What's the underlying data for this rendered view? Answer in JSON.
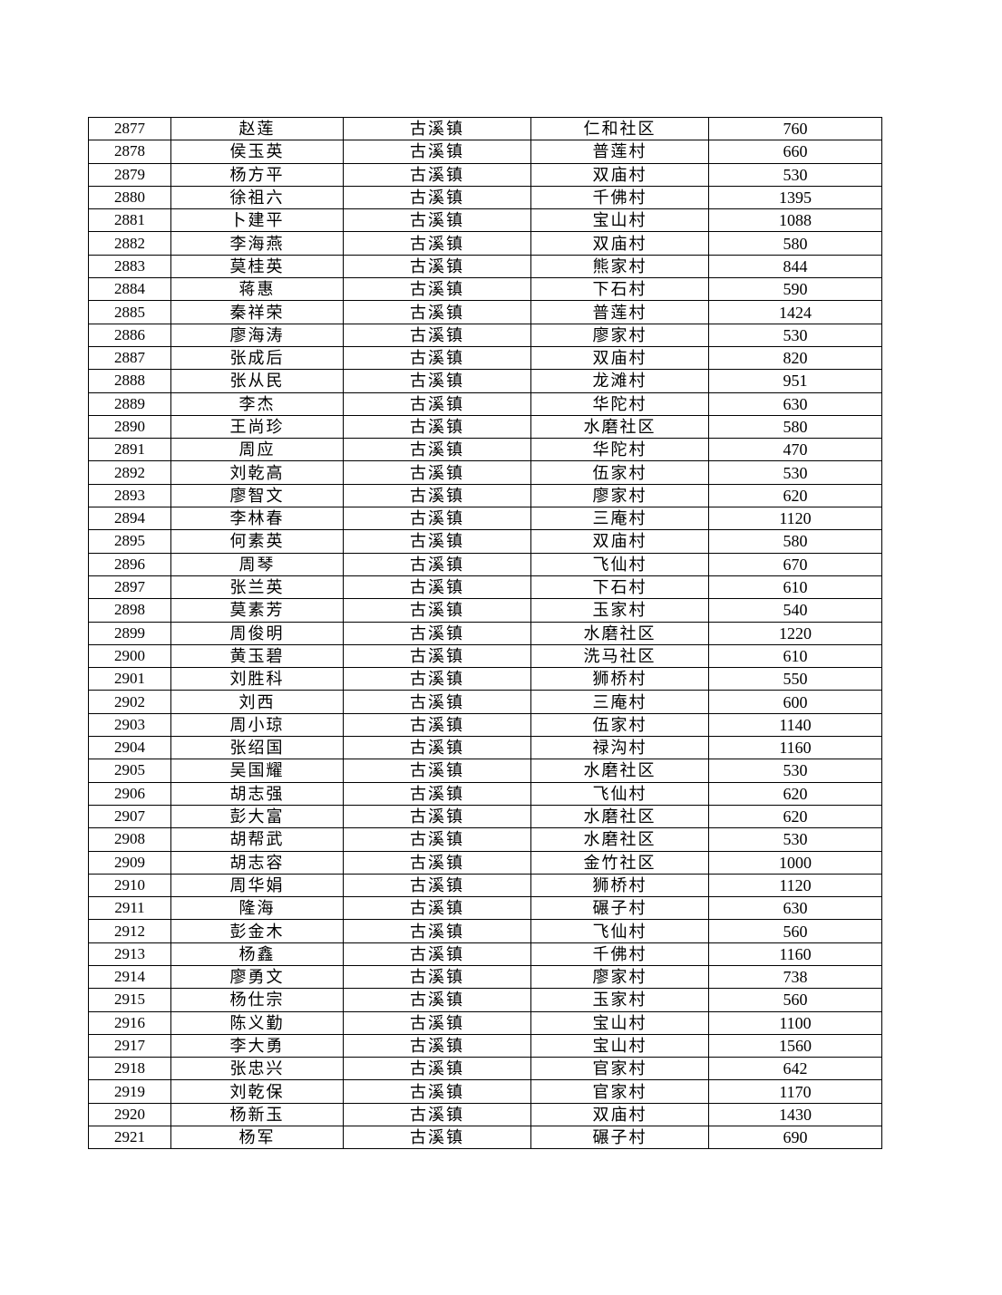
{
  "table": {
    "rows": [
      [
        "2877",
        "赵莲",
        "古溪镇",
        "仁和社区",
        "760"
      ],
      [
        "2878",
        "侯玉英",
        "古溪镇",
        "普莲村",
        "660"
      ],
      [
        "2879",
        "杨方平",
        "古溪镇",
        "双庙村",
        "530"
      ],
      [
        "2880",
        "徐祖六",
        "古溪镇",
        "千佛村",
        "1395"
      ],
      [
        "2881",
        "卜建平",
        "古溪镇",
        "宝山村",
        "1088"
      ],
      [
        "2882",
        "李海燕",
        "古溪镇",
        "双庙村",
        "580"
      ],
      [
        "2883",
        "莫桂英",
        "古溪镇",
        "熊家村",
        "844"
      ],
      [
        "2884",
        "蒋惠",
        "古溪镇",
        "下石村",
        "590"
      ],
      [
        "2885",
        "秦祥荣",
        "古溪镇",
        "普莲村",
        "1424"
      ],
      [
        "2886",
        "廖海涛",
        "古溪镇",
        "廖家村",
        "530"
      ],
      [
        "2887",
        "张成后",
        "古溪镇",
        "双庙村",
        "820"
      ],
      [
        "2888",
        "张从民",
        "古溪镇",
        "龙滩村",
        "951"
      ],
      [
        "2889",
        "李杰",
        "古溪镇",
        "华陀村",
        "630"
      ],
      [
        "2890",
        "王尚珍",
        "古溪镇",
        "水磨社区",
        "580"
      ],
      [
        "2891",
        "周应",
        "古溪镇",
        "华陀村",
        "470"
      ],
      [
        "2892",
        "刘乾高",
        "古溪镇",
        "伍家村",
        "530"
      ],
      [
        "2893",
        "廖智文",
        "古溪镇",
        "廖家村",
        "620"
      ],
      [
        "2894",
        "李林春",
        "古溪镇",
        "三庵村",
        "1120"
      ],
      [
        "2895",
        "何素英",
        "古溪镇",
        "双庙村",
        "580"
      ],
      [
        "2896",
        "周琴",
        "古溪镇",
        "飞仙村",
        "670"
      ],
      [
        "2897",
        "张兰英",
        "古溪镇",
        "下石村",
        "610"
      ],
      [
        "2898",
        "莫素芳",
        "古溪镇",
        "玉家村",
        "540"
      ],
      [
        "2899",
        "周俊明",
        "古溪镇",
        "水磨社区",
        "1220"
      ],
      [
        "2900",
        "黄玉碧",
        "古溪镇",
        "洗马社区",
        "610"
      ],
      [
        "2901",
        "刘胜科",
        "古溪镇",
        "狮桥村",
        "550"
      ],
      [
        "2902",
        "刘西",
        "古溪镇",
        "三庵村",
        "600"
      ],
      [
        "2903",
        "周小琼",
        "古溪镇",
        "伍家村",
        "1140"
      ],
      [
        "2904",
        "张绍国",
        "古溪镇",
        "禄沟村",
        "1160"
      ],
      [
        "2905",
        "吴国耀",
        "古溪镇",
        "水磨社区",
        "530"
      ],
      [
        "2906",
        "胡志强",
        "古溪镇",
        "飞仙村",
        "620"
      ],
      [
        "2907",
        "彭大富",
        "古溪镇",
        "水磨社区",
        "620"
      ],
      [
        "2908",
        "胡帮武",
        "古溪镇",
        "水磨社区",
        "530"
      ],
      [
        "2909",
        "胡志容",
        "古溪镇",
        "金竹社区",
        "1000"
      ],
      [
        "2910",
        "周华娟",
        "古溪镇",
        "狮桥村",
        "1120"
      ],
      [
        "2911",
        "隆海",
        "古溪镇",
        "碾子村",
        "630"
      ],
      [
        "2912",
        "彭金木",
        "古溪镇",
        "飞仙村",
        "560"
      ],
      [
        "2913",
        "杨鑫",
        "古溪镇",
        "千佛村",
        "1160"
      ],
      [
        "2914",
        "廖勇文",
        "古溪镇",
        "廖家村",
        "738"
      ],
      [
        "2915",
        "杨仕宗",
        "古溪镇",
        "玉家村",
        "560"
      ],
      [
        "2916",
        "陈义勤",
        "古溪镇",
        "宝山村",
        "1100"
      ],
      [
        "2917",
        "李大勇",
        "古溪镇",
        "宝山村",
        "1560"
      ],
      [
        "2918",
        "张忠兴",
        "古溪镇",
        "官家村",
        "642"
      ],
      [
        "2919",
        "刘乾保",
        "古溪镇",
        "官家村",
        "1170"
      ],
      [
        "2920",
        "杨新玉",
        "古溪镇",
        "双庙村",
        "1430"
      ],
      [
        "2921",
        "杨军",
        "古溪镇",
        "碾子村",
        "690"
      ]
    ]
  }
}
